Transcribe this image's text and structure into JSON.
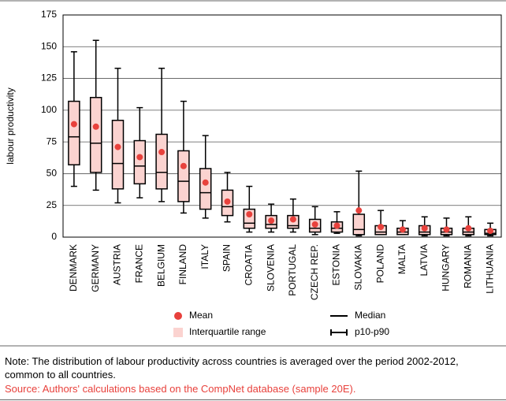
{
  "chart_data": {
    "type": "box",
    "y_label": "labour productivity",
    "categories": [
      "DENMARK",
      "GERMANY",
      "AUSTRIA",
      "FRANCE",
      "BELGIUM",
      "FINLAND",
      "ITALY",
      "SPAIN",
      "CROATIA",
      "SLOVENIA",
      "PORTUGAL",
      "CZECH REP.",
      "ESTONIA",
      "SLOVAKIA",
      "POLAND",
      "MALTA",
      "LATVIA",
      "HUNGARY",
      "ROMANIA",
      "LITHUANIA"
    ],
    "p10": [
      40,
      37,
      27,
      31,
      28,
      19,
      15,
      12,
      4,
      4,
      4,
      2,
      3,
      1,
      2,
      2,
      1,
      1,
      1,
      1
    ],
    "p25": [
      57,
      51,
      38,
      42,
      38,
      28,
      22,
      17,
      7,
      7,
      7,
      4,
      4,
      2,
      2,
      2,
      2,
      2,
      2,
      2
    ],
    "median": [
      79,
      74,
      58,
      56,
      51,
      44,
      35,
      24,
      11,
      10,
      9,
      7,
      7,
      6,
      4,
      4,
      4,
      4,
      4,
      3
    ],
    "p75": [
      107,
      110,
      92,
      76,
      81,
      68,
      54,
      37,
      22,
      17,
      17,
      14,
      12,
      18,
      9,
      7,
      9,
      7,
      7,
      6
    ],
    "p90": [
      146,
      155,
      133,
      102,
      133,
      107,
      80,
      51,
      40,
      26,
      30,
      24,
      20,
      52,
      21,
      13,
      16,
      15,
      16,
      11
    ],
    "mean": [
      89,
      87,
      71,
      63,
      67,
      56,
      43,
      28,
      18,
      13,
      14,
      10,
      9,
      21,
      8,
      6,
      7,
      6,
      7,
      5
    ],
    "ylim": [
      0,
      175
    ],
    "yticks": [
      0,
      25,
      50,
      75,
      100,
      125,
      150,
      175
    ],
    "grid": true,
    "legend": {
      "mean": "Mean",
      "iqr": "Interquartile range",
      "median": "Median",
      "range": "p10-p90"
    },
    "mean_color": "#e8413c",
    "box_color": "#fbd3d0",
    "note": "Note: The distribution of labour productivity across countries is averaged over the period 2002-2012, common to all countries.",
    "source": "Source: Authors' calculations based on the CompNet database (sample 20E)."
  }
}
